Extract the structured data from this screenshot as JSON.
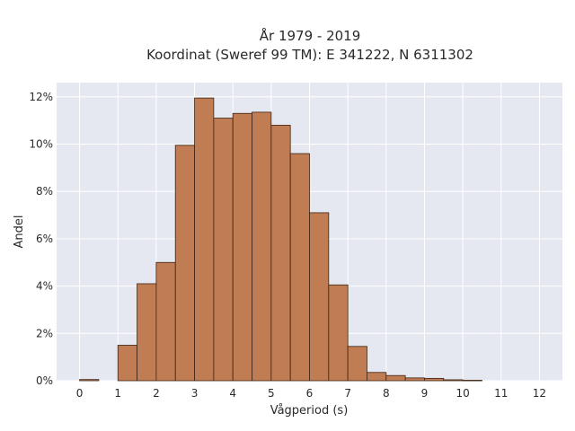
{
  "chart_data": {
    "type": "bar",
    "title_lines": [
      "År 1979 - 2019",
      "Koordinat (Sweref 99 TM): E 341222, N 6311302"
    ],
    "xlabel": "Vågperiod (s)",
    "ylabel": "Andel",
    "bin_width": 0.5,
    "bin_starts": [
      0,
      1,
      1.5,
      2,
      2.5,
      3,
      3.5,
      4,
      4.5,
      5,
      5.5,
      6,
      6.5,
      7,
      7.5,
      8,
      8.5,
      9,
      9.5,
      10
    ],
    "values": [
      0.05,
      1.5,
      4.1,
      5.0,
      9.95,
      11.95,
      11.1,
      11.3,
      11.35,
      10.8,
      9.6,
      7.1,
      4.05,
      1.45,
      0.35,
      0.22,
      0.12,
      0.1,
      0.04,
      0.02
    ],
    "xlim": [
      -0.6,
      12.6
    ],
    "ylim": [
      0,
      12.6
    ],
    "xticks": [
      0,
      1,
      2,
      3,
      4,
      5,
      6,
      7,
      8,
      9,
      10,
      11,
      12
    ],
    "yticks": [
      0,
      2,
      4,
      6,
      8,
      10,
      12
    ],
    "ytick_suffix": "%",
    "grid": true,
    "colors": {
      "bar": "#c07c53",
      "bar_edge": "#3d2414",
      "plot_bg": "#e5e8f0",
      "grid": "#ffffff"
    }
  }
}
